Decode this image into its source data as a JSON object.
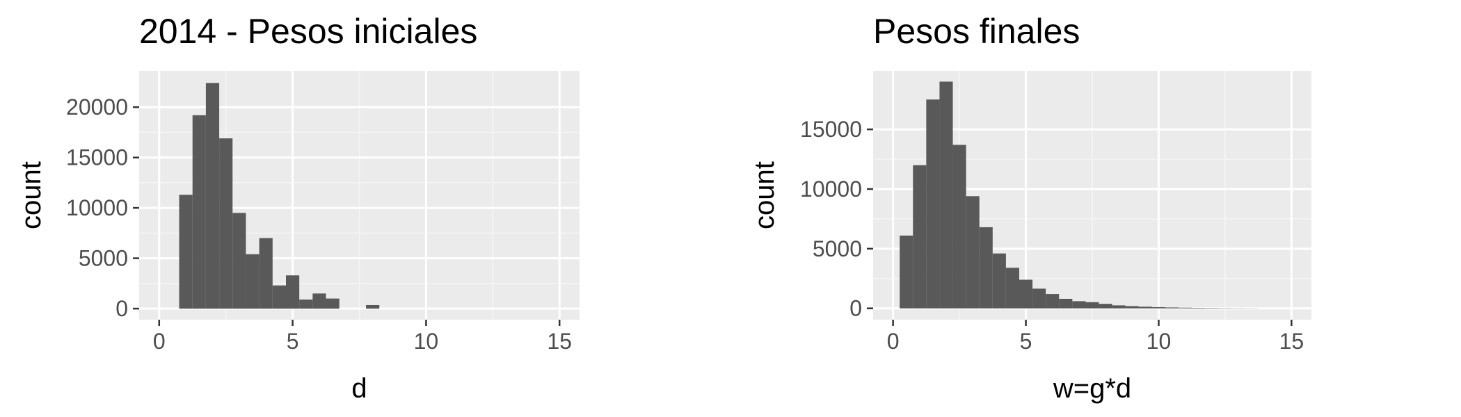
{
  "colors": {
    "panel_bg": "#ebebeb",
    "grid_major": "#ffffff",
    "grid_minor": "#f5f5f5",
    "bar_fill": "#595959",
    "tick_text": "#4d4d4d",
    "tick_mark": "#333333"
  },
  "chart_data": [
    {
      "type": "bar",
      "title": "2014 - Pesos iniciales",
      "xlabel": "d",
      "ylabel": "count",
      "xlim": [
        -0.75,
        15.75
      ],
      "ylim": [
        -1100,
        23600
      ],
      "xticks": [
        0,
        5,
        10,
        15
      ],
      "xtick_labels": [
        "0",
        "5",
        "10",
        "15"
      ],
      "yticks": [
        0,
        5000,
        10000,
        15000,
        20000
      ],
      "ytick_labels": [
        "0",
        "5000",
        "10000",
        "15000",
        "20000"
      ],
      "grid": true,
      "bin_width": 0.5,
      "bins": [
        {
          "x0": 0.75,
          "x1": 1.25,
          "count": 11300
        },
        {
          "x0": 1.25,
          "x1": 1.75,
          "count": 19200
        },
        {
          "x0": 1.75,
          "x1": 2.25,
          "count": 22400
        },
        {
          "x0": 2.25,
          "x1": 2.75,
          "count": 16900
        },
        {
          "x0": 2.75,
          "x1": 3.25,
          "count": 9500
        },
        {
          "x0": 3.25,
          "x1": 3.75,
          "count": 5400
        },
        {
          "x0": 3.75,
          "x1": 4.25,
          "count": 7000
        },
        {
          "x0": 4.25,
          "x1": 4.75,
          "count": 2300
        },
        {
          "x0": 4.75,
          "x1": 5.25,
          "count": 3300
        },
        {
          "x0": 5.25,
          "x1": 5.75,
          "count": 900
        },
        {
          "x0": 5.75,
          "x1": 6.25,
          "count": 1500
        },
        {
          "x0": 6.25,
          "x1": 6.75,
          "count": 1000
        },
        {
          "x0": 6.75,
          "x1": 7.25,
          "count": 0
        },
        {
          "x0": 7.25,
          "x1": 7.75,
          "count": 0
        },
        {
          "x0": 7.75,
          "x1": 8.25,
          "count": 350
        },
        {
          "x0": 8.25,
          "x1": 8.75,
          "count": 0
        }
      ]
    },
    {
      "type": "bar",
      "title": "Pesos finales",
      "xlabel": "w=g*d",
      "ylabel": "count",
      "xlim": [
        -0.75,
        15.75
      ],
      "ylim": [
        -950,
        19900
      ],
      "xticks": [
        0,
        5,
        10,
        15
      ],
      "xtick_labels": [
        "0",
        "5",
        "10",
        "15"
      ],
      "yticks": [
        0,
        5000,
        10000,
        15000
      ],
      "ytick_labels": [
        "0",
        "5000",
        "10000",
        "15000"
      ],
      "grid": true,
      "bin_width": 0.5,
      "bins": [
        {
          "x0": 0.25,
          "x1": 0.75,
          "count": 6100
        },
        {
          "x0": 0.75,
          "x1": 1.25,
          "count": 12000
        },
        {
          "x0": 1.25,
          "x1": 1.75,
          "count": 17500
        },
        {
          "x0": 1.75,
          "x1": 2.25,
          "count": 19000
        },
        {
          "x0": 2.25,
          "x1": 2.75,
          "count": 13700
        },
        {
          "x0": 2.75,
          "x1": 3.25,
          "count": 9400
        },
        {
          "x0": 3.25,
          "x1": 3.75,
          "count": 6800
        },
        {
          "x0": 3.75,
          "x1": 4.25,
          "count": 4600
        },
        {
          "x0": 4.25,
          "x1": 4.75,
          "count": 3400
        },
        {
          "x0": 4.75,
          "x1": 5.25,
          "count": 2400
        },
        {
          "x0": 5.25,
          "x1": 5.75,
          "count": 1650
        },
        {
          "x0": 5.75,
          "x1": 6.25,
          "count": 1200
        },
        {
          "x0": 6.25,
          "x1": 6.75,
          "count": 800
        },
        {
          "x0": 6.75,
          "x1": 7.25,
          "count": 600
        },
        {
          "x0": 7.25,
          "x1": 7.75,
          "count": 520
        },
        {
          "x0": 7.75,
          "x1": 8.25,
          "count": 380
        },
        {
          "x0": 8.25,
          "x1": 8.75,
          "count": 250
        },
        {
          "x0": 8.75,
          "x1": 9.25,
          "count": 190
        },
        {
          "x0": 9.25,
          "x1": 9.75,
          "count": 140
        },
        {
          "x0": 9.75,
          "x1": 10.25,
          "count": 100
        },
        {
          "x0": 10.25,
          "x1": 10.75,
          "count": 75
        },
        {
          "x0": 10.75,
          "x1": 11.25,
          "count": 55
        },
        {
          "x0": 11.25,
          "x1": 11.75,
          "count": 40
        },
        {
          "x0": 11.75,
          "x1": 12.25,
          "count": 30
        },
        {
          "x0": 12.25,
          "x1": 12.75,
          "count": 20
        },
        {
          "x0": 12.75,
          "x1": 13.25,
          "count": 15
        },
        {
          "x0": 13.25,
          "x1": 13.75,
          "count": 10
        }
      ]
    }
  ]
}
